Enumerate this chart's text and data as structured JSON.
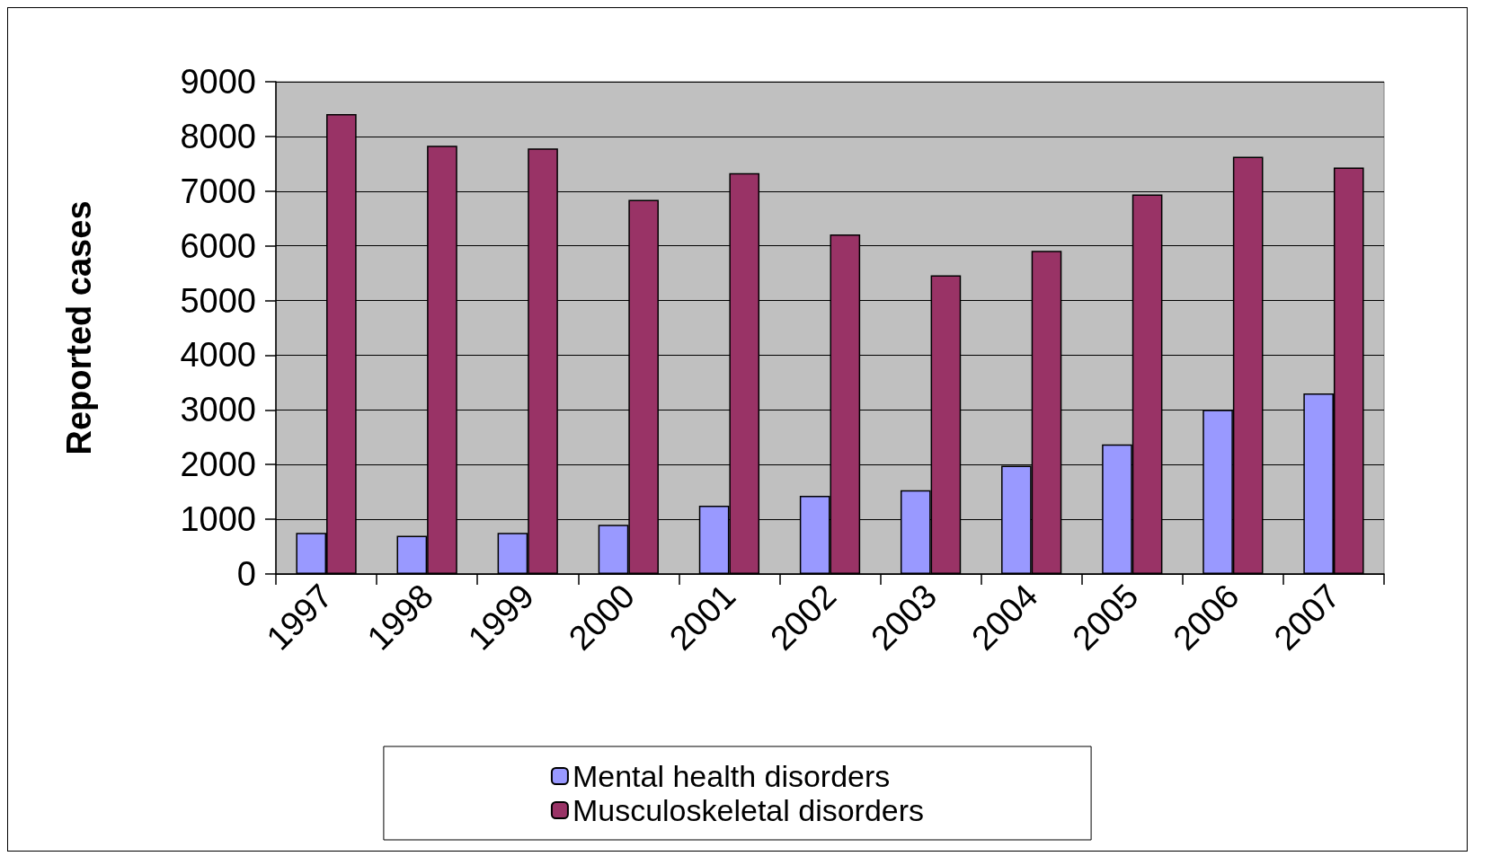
{
  "chart_data": {
    "type": "bar",
    "ylabel": "Reported cases",
    "categories": [
      "1997",
      "1998",
      "1999",
      "2000",
      "2001",
      "2002",
      "2003",
      "2004",
      "2005",
      "2006",
      "2007"
    ],
    "series": [
      {
        "name": "Mental health disorders",
        "color": "#9999ff",
        "values": [
          750,
          700,
          750,
          900,
          1250,
          1430,
          1530,
          1980,
          2370,
          3000,
          3300
        ]
      },
      {
        "name": "Musculoskeletal disorders",
        "color": "#993366",
        "values": [
          8410,
          7830,
          7780,
          6840,
          7330,
          6210,
          5460,
          5910,
          6940,
          7630,
          7430
        ]
      }
    ],
    "ylim": [
      0,
      9000
    ],
    "yticks": [
      0,
      1000,
      2000,
      3000,
      4000,
      5000,
      6000,
      7000,
      8000,
      9000
    ],
    "grid": "y",
    "legend": "bottom"
  }
}
